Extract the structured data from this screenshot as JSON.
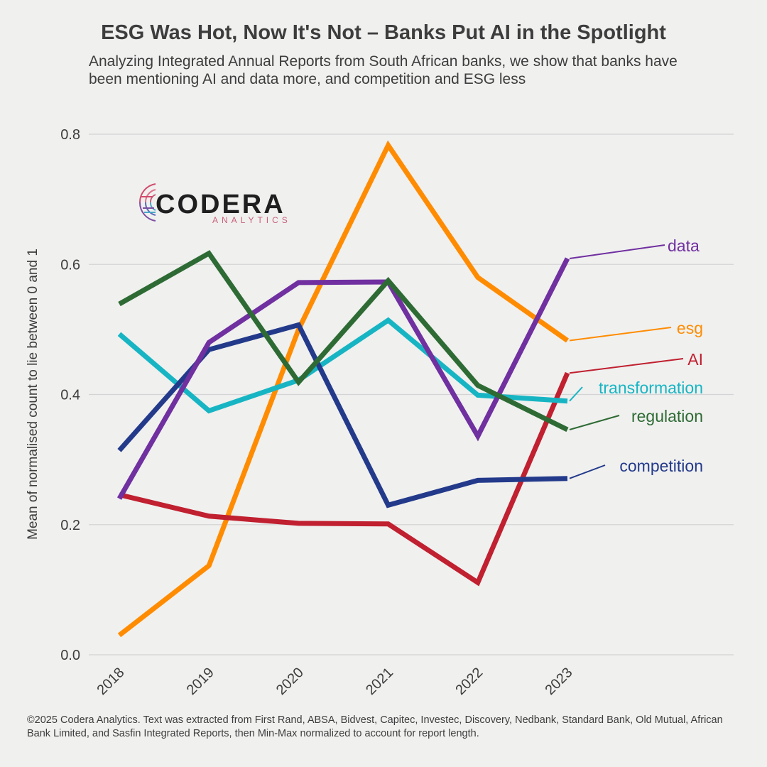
{
  "header": {
    "title": "ESG Was Hot, Now It's Not – Banks Put AI in the Spotlight",
    "subtitle": "Analyzing Integrated Annual Reports from South African banks, we show that banks have been mentioning AI and data more, and competition and ESG less"
  },
  "logo": {
    "name": "CODERA",
    "tagline": "ANALYTICS"
  },
  "footer": {
    "text": "©2025 Codera Analytics. Text was extracted from First Rand, ABSA, Bidvest, Capitec, Investec, Discovery, Nedbank, Standard Bank, Old Mutual, African Bank Limited, and Sasfin Integrated Reports, then Min-Max normalized to account for report length."
  },
  "chart_data": {
    "type": "line",
    "x": [
      "2018",
      "2019",
      "2020",
      "2021",
      "2022",
      "2023"
    ],
    "ylabel": "Mean of normalised count to lie between 0 and 1",
    "xlabel": "",
    "ylim": [
      0,
      0.8
    ],
    "yticks": [
      "0.0",
      "0.2",
      "0.4",
      "0.6",
      "0.8"
    ],
    "grid": "horizontal",
    "series": [
      {
        "name": "esg",
        "color": "#ff8c00",
        "values": [
          0.03,
          0.137,
          0.5,
          0.783,
          0.58,
          0.483
        ]
      },
      {
        "name": "data",
        "color": "#7030a0",
        "values": [
          0.24,
          0.48,
          0.572,
          0.573,
          0.336,
          0.609
        ]
      },
      {
        "name": "AI",
        "color": "#c0202f",
        "values": [
          0.246,
          0.213,
          0.202,
          0.201,
          0.111,
          0.433
        ]
      },
      {
        "name": "transformation",
        "color": "#17b5c3",
        "values": [
          0.493,
          0.375,
          0.422,
          0.514,
          0.399,
          0.39
        ]
      },
      {
        "name": "regulation",
        "color": "#2e6b34",
        "values": [
          0.539,
          0.617,
          0.419,
          0.575,
          0.414,
          0.346
        ]
      },
      {
        "name": "competition",
        "color": "#233a8b",
        "values": [
          0.314,
          0.469,
          0.507,
          0.23,
          0.268,
          0.271
        ]
      }
    ]
  }
}
